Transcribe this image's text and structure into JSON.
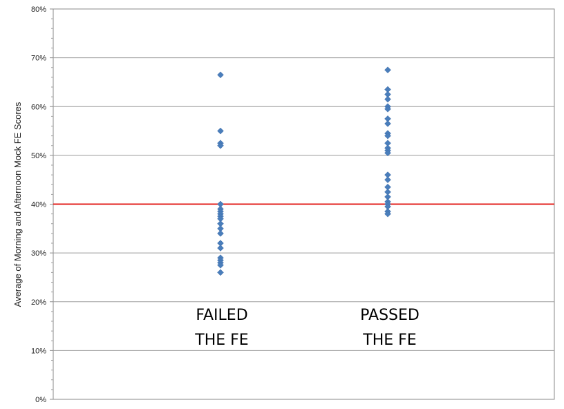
{
  "chart_data": {
    "type": "scatter",
    "title": "",
    "xlabel": "",
    "ylabel": "Average of Morning and Afternoon Mock FE Scores",
    "ylim": [
      0,
      80
    ],
    "y_unit": "%",
    "yticks": [
      "0%",
      "10%",
      "20%",
      "30%",
      "40%",
      "50%",
      "60%",
      "70%",
      "80%"
    ],
    "grid": true,
    "reference_line": {
      "y": 40,
      "color": "#e3231f"
    },
    "marker_color": "#4a7ebb",
    "groups": [
      {
        "label_line1": "FAILED",
        "label_line2": "THE FE",
        "values": [
          66.5,
          55,
          52.5,
          52,
          40,
          39,
          38.5,
          38,
          37.5,
          37,
          36,
          35,
          34,
          32,
          31,
          29,
          28.5,
          28,
          27.5,
          26
        ]
      },
      {
        "label_line1": "PASSED",
        "label_line2": "THE FE",
        "values": [
          67.5,
          63.5,
          62.5,
          61.5,
          60,
          59.5,
          57.5,
          56.5,
          54.5,
          54,
          52.5,
          51.5,
          51,
          50.5,
          46,
          45,
          43.5,
          42.5,
          41.5,
          40.5,
          40,
          39.5,
          38.5,
          38
        ]
      }
    ]
  }
}
